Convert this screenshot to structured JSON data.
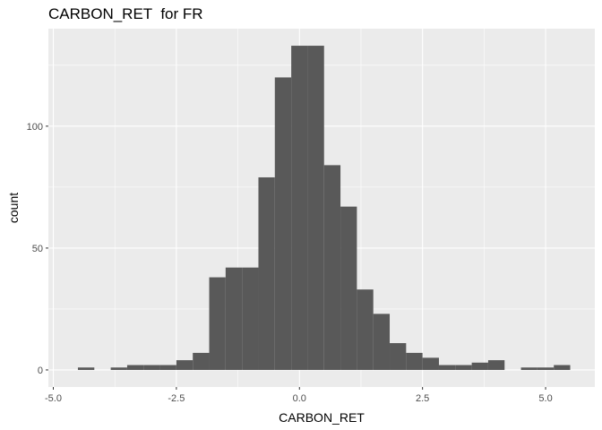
{
  "chart_data": {
    "type": "bar",
    "title": "CARBON_RET  for FR",
    "xlabel": "CARBON_RET",
    "ylabel": "count",
    "xlim": [
      -5.1,
      6.0
    ],
    "ylim": [
      -7,
      140
    ],
    "x_ticks": [
      -5.0,
      -2.5,
      0.0,
      2.5,
      5.0
    ],
    "x_tick_labels": [
      "-5.0",
      "-2.5",
      "0.0",
      "2.5",
      "5.0"
    ],
    "y_ticks": [
      0,
      50,
      100
    ],
    "y_tick_labels": [
      "0",
      "50",
      "100"
    ],
    "grid": true,
    "bin_width": 0.3333,
    "bins": [
      {
        "x0": -4.5,
        "x1": -4.1667,
        "count": 1
      },
      {
        "x0": -3.8333,
        "x1": -3.5,
        "count": 1
      },
      {
        "x0": -3.5,
        "x1": -3.1667,
        "count": 2
      },
      {
        "x0": -3.1667,
        "x1": -2.8333,
        "count": 2
      },
      {
        "x0": -2.8333,
        "x1": -2.5,
        "count": 2
      },
      {
        "x0": -2.5,
        "x1": -2.1667,
        "count": 4
      },
      {
        "x0": -2.1667,
        "x1": -1.8333,
        "count": 7
      },
      {
        "x0": -1.8333,
        "x1": -1.5,
        "count": 38
      },
      {
        "x0": -1.5,
        "x1": -1.1667,
        "count": 42
      },
      {
        "x0": -1.1667,
        "x1": -0.8333,
        "count": 42
      },
      {
        "x0": -0.8333,
        "x1": -0.5,
        "count": 79
      },
      {
        "x0": -0.5,
        "x1": -0.1667,
        "count": 120
      },
      {
        "x0": -0.1667,
        "x1": 0.1667,
        "count": 133
      },
      {
        "x0": 0.1667,
        "x1": 0.5,
        "count": 133
      },
      {
        "x0": 0.5,
        "x1": 0.8333,
        "count": 84
      },
      {
        "x0": 0.8333,
        "x1": 1.1667,
        "count": 67
      },
      {
        "x0": 1.1667,
        "x1": 1.5,
        "count": 33
      },
      {
        "x0": 1.5,
        "x1": 1.8333,
        "count": 23
      },
      {
        "x0": 1.8333,
        "x1": 2.1667,
        "count": 11
      },
      {
        "x0": 2.1667,
        "x1": 2.5,
        "count": 7
      },
      {
        "x0": 2.5,
        "x1": 2.8333,
        "count": 5
      },
      {
        "x0": 2.8333,
        "x1": 3.1667,
        "count": 2
      },
      {
        "x0": 3.1667,
        "x1": 3.5,
        "count": 2
      },
      {
        "x0": 3.5,
        "x1": 3.8333,
        "count": 3
      },
      {
        "x0": 3.8333,
        "x1": 4.1667,
        "count": 4
      },
      {
        "x0": 4.5,
        "x1": 4.8333,
        "count": 1
      },
      {
        "x0": 4.8333,
        "x1": 5.1667,
        "count": 1
      },
      {
        "x0": 5.1667,
        "x1": 5.5,
        "count": 2
      }
    ],
    "colors": {
      "panel_background": "#ebebeb",
      "grid_major": "#ffffff",
      "bar_fill": "#595959",
      "tick_text": "#4d4d4d",
      "tick_mark": "#333333"
    }
  }
}
